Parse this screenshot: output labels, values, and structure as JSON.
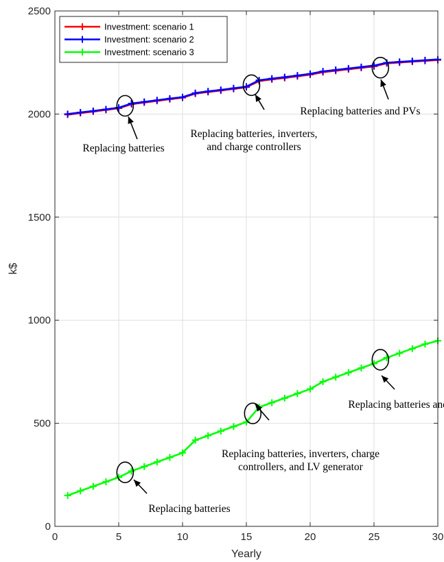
{
  "chart_data": {
    "type": "line",
    "xlabel": "Yearly",
    "ylabel": "k$",
    "xlim": [
      0,
      30
    ],
    "ylim": [
      0,
      2500
    ],
    "xticks": [
      0,
      5,
      10,
      15,
      20,
      25,
      30
    ],
    "yticks": [
      0,
      500,
      1000,
      1500,
      2000,
      2500
    ],
    "grid": true,
    "legend_position": "top-left",
    "x": [
      1,
      2,
      3,
      4,
      5,
      6,
      7,
      8,
      9,
      10,
      11,
      12,
      13,
      14,
      15,
      16,
      17,
      18,
      19,
      20,
      21,
      22,
      23,
      24,
      25,
      26,
      27,
      28,
      29,
      30
    ],
    "series": [
      {
        "name": "Investment: scenario 1",
        "color": "#ff0000",
        "values": [
          1997,
          2005,
          2012,
          2020,
          2028,
          2048,
          2056,
          2064,
          2072,
          2079,
          2099,
          2107,
          2114,
          2122,
          2130,
          2160,
          2168,
          2175,
          2183,
          2191,
          2203,
          2210,
          2217,
          2224,
          2231,
          2246,
          2250,
          2254,
          2258,
          2262
        ]
      },
      {
        "name": "Investment: scenario 2",
        "color": "#0000ff",
        "values": [
          2000,
          2008,
          2015,
          2023,
          2031,
          2051,
          2059,
          2067,
          2075,
          2082,
          2102,
          2110,
          2117,
          2125,
          2133,
          2164,
          2172,
          2179,
          2187,
          2195,
          2207,
          2214,
          2221,
          2228,
          2235,
          2249,
          2253,
          2257,
          2261,
          2265
        ]
      },
      {
        "name": "Investment: scenario 3",
        "color": "#00ff00",
        "values": [
          150,
          172,
          194,
          216,
          238,
          268,
          290,
          312,
          334,
          357,
          418,
          440,
          462,
          484,
          506,
          578,
          600,
          622,
          644,
          666,
          702,
          724,
          746,
          768,
          790,
          818,
          840,
          862,
          884,
          900
        ]
      }
    ],
    "markers": [
      {
        "x": 5.5,
        "y": 2040
      },
      {
        "x": 15.4,
        "y": 2140
      },
      {
        "x": 25.5,
        "y": 2225
      },
      {
        "x": 5.5,
        "y": 262
      },
      {
        "x": 15.5,
        "y": 548
      },
      {
        "x": 25.5,
        "y": 808
      }
    ],
    "annotations": [
      {
        "lines": [
          "Replacing batteries"
        ]
      },
      {
        "lines": [
          "Replacing batteries, inverters,",
          "and charge controllers"
        ]
      },
      {
        "lines": [
          "Replacing batteries and PVs"
        ]
      },
      {
        "lines": [
          "Replacing batteries"
        ]
      },
      {
        "lines": [
          "Replacing batteries, inverters, charge",
          "controllers, and LV generator"
        ]
      },
      {
        "lines": [
          "Replacing batteries and PVs"
        ]
      }
    ]
  }
}
